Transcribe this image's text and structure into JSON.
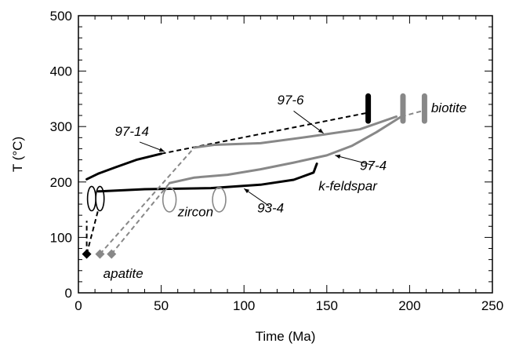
{
  "chart_data": {
    "type": "line",
    "title": "",
    "xlabel": "Time (Ma)",
    "ylabel": "T (°C)",
    "xlim": [
      0,
      250
    ],
    "ylim": [
      0,
      500
    ],
    "x_ticks": [
      "0",
      "50",
      "100",
      "150",
      "200",
      "250"
    ],
    "y_ticks": [
      "0",
      "100",
      "200",
      "300",
      "400",
      "500"
    ],
    "colors": {
      "dark": "#000000",
      "gray": "#888888"
    },
    "series": [
      {
        "name": "97-14",
        "color": "dark",
        "width": 3,
        "style": "solid",
        "points": [
          [
            5,
            205
          ],
          [
            12,
            215
          ],
          [
            22,
            226
          ],
          [
            35,
            240
          ],
          [
            50,
            251
          ]
        ]
      },
      {
        "name": "97-14",
        "color": "dark",
        "width": 2,
        "style": "dashed",
        "points": [
          [
            50,
            251
          ],
          [
            175,
            325
          ]
        ]
      },
      {
        "name": "93-4",
        "color": "dark",
        "width": 3,
        "style": "solid",
        "points": [
          [
            12,
            183
          ],
          [
            40,
            187
          ],
          [
            80,
            189
          ],
          [
            110,
            195
          ],
          [
            130,
            204
          ],
          [
            142,
            217
          ],
          [
            144,
            233
          ]
        ]
      },
      {
        "name": "97-6",
        "color": "gray",
        "width": 3,
        "style": "solid",
        "points": [
          [
            70,
            262
          ],
          [
            82,
            267
          ],
          [
            110,
            270
          ],
          [
            140,
            282
          ],
          [
            170,
            295
          ],
          [
            192,
            318
          ]
        ]
      },
      {
        "name": "97-4",
        "color": "gray",
        "width": 3,
        "style": "solid",
        "points": [
          [
            55,
            198
          ],
          [
            70,
            208
          ],
          [
            90,
            213
          ],
          [
            110,
            223
          ],
          [
            130,
            235
          ],
          [
            150,
            248
          ],
          [
            165,
            265
          ],
          [
            180,
            290
          ],
          [
            195,
            318
          ]
        ]
      },
      {
        "name": "",
        "color": "dark",
        "width": 2,
        "style": "dashed",
        "points": [
          [
            5,
            70
          ],
          [
            5,
            130
          ]
        ]
      },
      {
        "name": "",
        "color": "dark",
        "width": 2,
        "style": "dashed",
        "points": [
          [
            5,
            70
          ],
          [
            12,
            150
          ]
        ]
      },
      {
        "name": "",
        "color": "gray",
        "width": 2,
        "style": "dashed",
        "points": [
          [
            13,
            70
          ],
          [
            70,
            262
          ]
        ]
      },
      {
        "name": "",
        "color": "gray",
        "width": 2,
        "style": "dashed",
        "points": [
          [
            20,
            70
          ],
          [
            55,
            198
          ]
        ]
      },
      {
        "name": "",
        "color": "gray",
        "width": 2,
        "style": "dashed",
        "points": [
          [
            195,
            318
          ],
          [
            210,
            330
          ]
        ]
      }
    ],
    "vertical_bars": [
      {
        "x": 175,
        "y1": 310,
        "y2": 355,
        "color": "dark"
      },
      {
        "x": 196,
        "y1": 310,
        "y2": 355,
        "color": "gray"
      },
      {
        "x": 209,
        "y1": 310,
        "y2": 355,
        "color": "gray"
      }
    ],
    "ellipses": [
      {
        "cx": 8,
        "cy": 170,
        "rx": 2.5,
        "ry": 22,
        "color": "dark"
      },
      {
        "cx": 13,
        "cy": 170,
        "rx": 2.5,
        "ry": 22,
        "color": "dark"
      },
      {
        "cx": 55,
        "cy": 168,
        "rx": 4,
        "ry": 22,
        "color": "gray"
      },
      {
        "cx": 85,
        "cy": 168,
        "rx": 4,
        "ry": 22,
        "color": "gray"
      }
    ],
    "markers": [
      {
        "x": 5,
        "y": 70,
        "shape": "diamond",
        "color": "dark"
      },
      {
        "x": 13,
        "y": 70,
        "shape": "diamond",
        "color": "gray"
      },
      {
        "x": 20,
        "y": 70,
        "shape": "diamond",
        "color": "gray"
      }
    ],
    "annotations": [
      {
        "text": "97-14",
        "x": 22,
        "y": 283
      },
      {
        "text": "97-6",
        "x": 120,
        "y": 340
      },
      {
        "text": "biotite",
        "x": 213,
        "y": 326
      },
      {
        "text": "97-4",
        "x": 170,
        "y": 222
      },
      {
        "text": "k-feldspar",
        "x": 145,
        "y": 185
      },
      {
        "text": "93-4",
        "x": 108,
        "y": 145
      },
      {
        "text": "zircon",
        "x": 60,
        "y": 138
      },
      {
        "text": "apatite",
        "x": 15,
        "y": 27
      }
    ],
    "annotation_arrows": [
      {
        "from": [
          37,
          272
        ],
        "to": [
          52,
          255
        ]
      },
      {
        "from": [
          130,
          328
        ],
        "to": [
          148,
          288
        ]
      },
      {
        "from": [
          178,
          230
        ],
        "to": [
          155,
          248
        ]
      },
      {
        "from": [
          115,
          157
        ],
        "to": [
          100,
          188
        ]
      }
    ]
  }
}
